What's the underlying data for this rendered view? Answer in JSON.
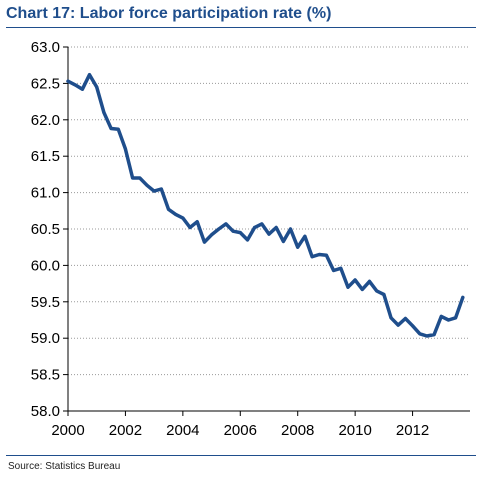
{
  "header": {
    "title": "Chart 17: Labor force participation rate (%)"
  },
  "footer": {
    "source": "Source: Statistics Bureau"
  },
  "chart_data": {
    "type": "line",
    "title": "Chart 17: Labor force participation rate (%)",
    "xlabel": "",
    "ylabel": "",
    "xlim": [
      2000,
      2014
    ],
    "ylim": [
      58.0,
      63.0
    ],
    "x_ticks": [
      "2000",
      "2002",
      "2004",
      "2006",
      "2008",
      "2010",
      "2012"
    ],
    "y_ticks": [
      "63.0",
      "62.5",
      "62.0",
      "61.5",
      "61.0",
      "60.5",
      "60.0",
      "59.5",
      "59.0",
      "58.5",
      "58.0"
    ],
    "grid": "horizontal dotted",
    "line_color": "#1f4e8c",
    "series": [
      {
        "x": [
          2000.0,
          2000.25,
          2000.5,
          2000.75,
          2001.0,
          2001.25,
          2001.5,
          2001.75,
          2002.0,
          2002.25,
          2002.5,
          2002.75,
          2003.0,
          2003.25,
          2003.5,
          2003.75,
          2004.0,
          2004.25,
          2004.5,
          2004.75,
          2005.0,
          2005.25,
          2005.5,
          2005.75,
          2006.0,
          2006.25,
          2006.5,
          2006.75,
          2007.0,
          2007.25,
          2007.5,
          2007.75,
          2008.0,
          2008.25,
          2008.5,
          2008.75,
          2009.0,
          2009.25,
          2009.5,
          2009.75,
          2010.0,
          2010.25,
          2010.5,
          2010.75,
          2011.0,
          2011.25,
          2011.5,
          2011.75,
          2012.0,
          2012.25,
          2012.5,
          2012.75,
          2013.0,
          2013.25,
          2013.5,
          2013.75
        ],
        "values": [
          62.53,
          62.48,
          62.42,
          62.62,
          62.45,
          62.1,
          61.88,
          61.87,
          61.6,
          61.2,
          61.2,
          61.1,
          61.02,
          61.05,
          60.77,
          60.7,
          60.65,
          60.52,
          60.6,
          60.32,
          60.42,
          60.5,
          60.57,
          60.47,
          60.45,
          60.35,
          60.52,
          60.57,
          60.43,
          60.52,
          60.33,
          60.5,
          60.25,
          60.4,
          60.12,
          60.15,
          60.14,
          59.93,
          59.96,
          59.7,
          59.8,
          59.67,
          59.78,
          59.65,
          59.6,
          59.28,
          59.18,
          59.27,
          59.17,
          59.06,
          59.03,
          59.05,
          59.3,
          59.25,
          59.28,
          59.56
        ]
      }
    ]
  }
}
